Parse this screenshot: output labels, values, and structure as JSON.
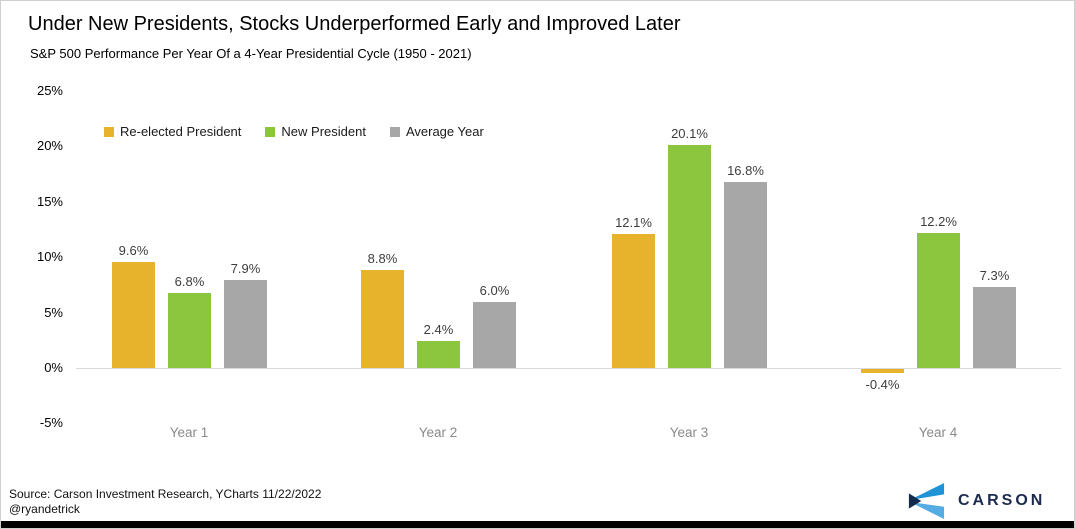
{
  "header": {
    "title": "Under New Presidents, Stocks Underperformed Early and Improved Later",
    "subtitle": "S&P 500 Performance Per Year Of a 4-Year Presidential Cycle (1950 - 2021)"
  },
  "chart_data": {
    "type": "bar",
    "title": "Under New Presidents, Stocks Underperformed Early and Improved Later",
    "subtitle": "S&P 500 Performance Per Year Of a 4-Year Presidential Cycle (1950 - 2021)",
    "categories": [
      "Year 1",
      "Year 2",
      "Year 3",
      "Year 4"
    ],
    "series": [
      {
        "name": "Re-elected President",
        "color": "#E7B32C",
        "values": [
          9.6,
          8.8,
          12.1,
          -0.4
        ],
        "labels": [
          "9.6%",
          "8.8%",
          "12.1%",
          "-0.4%"
        ]
      },
      {
        "name": "New President",
        "color": "#8CC63F",
        "values": [
          6.8,
          2.4,
          20.1,
          12.2
        ],
        "labels": [
          "6.8%",
          "2.4%",
          "20.1%",
          "12.2%"
        ]
      },
      {
        "name": "Average Year",
        "color": "#A7A7A7",
        "values": [
          7.9,
          6.0,
          16.8,
          7.3
        ],
        "labels": [
          "7.9%",
          "6.0%",
          "16.8%",
          "7.3%"
        ]
      }
    ],
    "ylabel": "",
    "xlabel": "",
    "ylim": [
      -5,
      25
    ],
    "y_tick_values": [
      25,
      20,
      15,
      10,
      5,
      0,
      -5
    ],
    "y_tick_labels": [
      "25%",
      "20%",
      "15%",
      "10%",
      "5%",
      "0%",
      "-5%"
    ],
    "grid": "zero-line-only",
    "legend_position": "top-left",
    "value_suffix": "%"
  },
  "footer": {
    "source_line1": "Source: Carson Investment Research, YCharts 11/22/2022",
    "source_line2": "@ryandetrick",
    "logo_text": "CARSON"
  },
  "colors": {
    "reelected": "#E7B32C",
    "new_president": "#8CC63F",
    "average_year": "#A7A7A7",
    "zero_line": "#D9D9D9",
    "category_label": "#8A8A8A",
    "logo_navy": "#1C2B4D",
    "logo_blue_top": "#1E93D6",
    "logo_blue_bottom": "#54ACE3",
    "bottom_bar": "#000000"
  }
}
